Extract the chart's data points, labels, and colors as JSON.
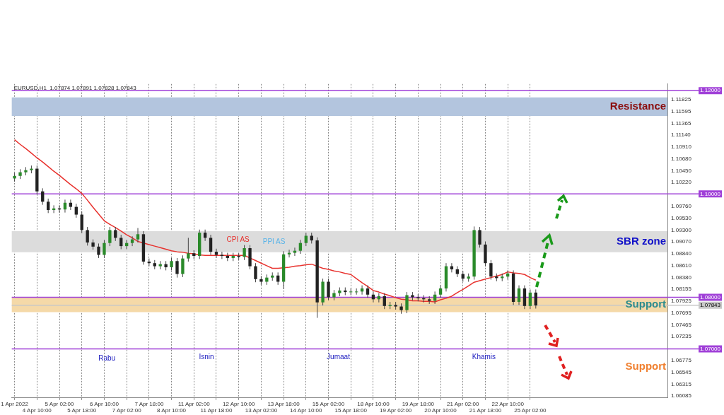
{
  "chart_data": {
    "type": "candlestick",
    "title": "EURUSD,H1  1.07874 1.07891 1.07828 1.07843",
    "categories": [
      "1 Apr 2022",
      null,
      null,
      null,
      "4 Apr 10:00",
      null,
      null,
      null,
      "5 Apr 02:00",
      null,
      null,
      null,
      "5 Apr 18:00",
      null,
      null,
      null,
      "6 Apr 10:00",
      null,
      null,
      null,
      "7 Apr 02:00",
      null,
      null,
      null,
      "7 Apr 18:00",
      null,
      null,
      null,
      "8 Apr 10:00",
      null,
      null,
      null,
      "11 Apr 02:00",
      null,
      null,
      null,
      "11 Apr 18:00",
      null,
      null,
      null,
      "12 Apr 10:00",
      null,
      null,
      null,
      "13 Apr 02:00",
      null,
      null,
      null,
      "13 Apr 18:00",
      null,
      null,
      null,
      "14 Apr 10:00",
      null,
      null,
      null,
      "15 Apr 02:00",
      null,
      null,
      null,
      "15 Apr 18:00",
      null,
      null,
      null,
      "18 Apr 10:00",
      null,
      null,
      null,
      "19 Apr 02:00",
      null,
      null,
      null,
      "19 Apr 18:00",
      null,
      null,
      null,
      "20 Apr 10:00",
      null,
      null,
      null,
      "21 Apr 02:00",
      null,
      null,
      null,
      "21 Apr 18:00",
      null,
      null,
      null,
      "22 Apr 10:00",
      null,
      null,
      null,
      "25 Apr 02:00",
      null,
      null,
      null,
      null,
      null,
      null,
      null,
      null,
      null,
      null,
      null,
      null,
      null,
      null,
      null,
      null,
      null,
      null,
      null,
      null,
      null,
      null,
      null,
      null
    ],
    "ohlc": [
      [
        1.103,
        1.1041,
        1.1024,
        1.1035
      ],
      [
        1.1035,
        1.1048,
        1.1029,
        1.1042
      ],
      [
        1.1042,
        1.1052,
        1.1036,
        1.1046
      ],
      [
        1.1046,
        1.1055,
        1.104,
        1.1049
      ],
      [
        1.1049,
        1.1055,
        1.0999,
        1.1005
      ],
      [
        1.1005,
        1.1011,
        1.0979,
        1.0985
      ],
      [
        1.0985,
        1.0991,
        1.0963,
        1.0969
      ],
      [
        1.0969,
        1.0978,
        1.0963,
        1.0972
      ],
      [
        1.0972,
        1.0978,
        1.0964,
        1.097
      ],
      [
        1.097,
        1.0989,
        1.0964,
        1.0983
      ],
      [
        1.0983,
        1.0989,
        1.0969,
        1.0975
      ],
      [
        1.0975,
        1.0981,
        1.0954,
        1.096
      ],
      [
        1.096,
        1.0966,
        1.0924,
        1.093
      ],
      [
        1.093,
        1.0936,
        1.09,
        1.0906
      ],
      [
        1.0906,
        1.0912,
        1.0892,
        1.0898
      ],
      [
        1.0898,
        1.0904,
        1.0876,
        1.0882
      ],
      [
        1.0882,
        1.0911,
        1.0876,
        1.0905
      ],
      [
        1.0905,
        1.0936,
        1.0899,
        1.093
      ],
      [
        1.093,
        1.0936,
        1.0909,
        1.0915
      ],
      [
        1.0915,
        1.0921,
        1.0893,
        1.0899
      ],
      [
        1.0899,
        1.0911,
        1.0893,
        1.0905
      ],
      [
        1.0905,
        1.0918,
        1.0899,
        1.0912
      ],
      [
        1.0912,
        1.0934,
        1.0906,
        1.0922
      ],
      [
        1.0922,
        1.0928,
        1.0863,
        1.0869
      ],
      [
        1.0869,
        1.0875,
        1.086,
        1.0866
      ],
      [
        1.0866,
        1.0872,
        1.0854,
        1.086
      ],
      [
        1.086,
        1.087,
        1.0854,
        1.0864
      ],
      [
        1.0864,
        1.087,
        1.0852,
        1.0858
      ],
      [
        1.0858,
        1.0876,
        1.0852,
        1.087
      ],
      [
        1.087,
        1.0876,
        1.0838,
        1.0845
      ],
      [
        1.0845,
        1.0881,
        1.0839,
        1.0875
      ],
      [
        1.0875,
        1.0915,
        1.0869,
        1.0885
      ],
      [
        1.0885,
        1.0891,
        1.0874,
        1.088
      ],
      [
        1.088,
        1.0931,
        1.0874,
        1.0925
      ],
      [
        1.0925,
        1.0931,
        1.0909,
        1.0915
      ],
      [
        1.0915,
        1.0921,
        1.0882,
        1.0888
      ],
      [
        1.0888,
        1.0894,
        1.0876,
        1.0882
      ],
      [
        1.0882,
        1.0888,
        1.0874,
        1.088
      ],
      [
        1.088,
        1.0886,
        1.087,
        1.0876
      ],
      [
        1.0876,
        1.0886,
        1.087,
        1.088
      ],
      [
        1.088,
        1.0886,
        1.0872,
        1.0878
      ],
      [
        1.0878,
        1.0901,
        1.0872,
        1.0895
      ],
      [
        1.0895,
        1.0901,
        1.0854,
        1.086
      ],
      [
        1.086,
        1.0866,
        1.0829,
        1.0835
      ],
      [
        1.0835,
        1.0841,
        1.0824,
        1.083
      ],
      [
        1.083,
        1.0844,
        1.0824,
        1.0838
      ],
      [
        1.0838,
        1.0848,
        1.0832,
        1.0842
      ],
      [
        1.0842,
        1.0848,
        1.0824,
        1.083
      ],
      [
        1.083,
        1.0889,
        1.0816,
        1.0883
      ],
      [
        1.0883,
        1.0892,
        1.0877,
        1.0886
      ],
      [
        1.0886,
        1.0896,
        1.088,
        1.089
      ],
      [
        1.089,
        1.0911,
        1.0884,
        1.0905
      ],
      [
        1.0905,
        1.0925,
        1.0899,
        1.0919
      ],
      [
        1.0919,
        1.0925,
        1.0904,
        1.091
      ],
      [
        1.091,
        1.0916,
        1.076,
        1.079
      ],
      [
        1.079,
        1.0836,
        1.0784,
        1.083
      ],
      [
        1.083,
        1.0836,
        1.0794,
        1.08
      ],
      [
        1.08,
        1.0814,
        1.0794,
        1.0808
      ],
      [
        1.0808,
        1.0819,
        1.0802,
        1.0813
      ],
      [
        1.0813,
        1.0819,
        1.0804,
        1.081
      ],
      [
        1.081,
        1.0817,
        1.0804,
        1.0811
      ],
      [
        1.0811,
        1.0817,
        1.0805,
        1.0811
      ],
      [
        1.0811,
        1.0823,
        1.0805,
        1.0817
      ],
      [
        1.0817,
        1.0823,
        1.0799,
        1.0805
      ],
      [
        1.0805,
        1.0811,
        1.079,
        1.0796
      ],
      [
        1.0796,
        1.0808,
        1.079,
        1.0802
      ],
      [
        1.0802,
        1.0808,
        1.0777,
        1.0783
      ],
      [
        1.0783,
        1.0791,
        1.0777,
        1.0785
      ],
      [
        1.0785,
        1.0791,
        1.0776,
        1.0782
      ],
      [
        1.0782,
        1.0788,
        1.0768,
        1.0775
      ],
      [
        1.0775,
        1.081,
        1.0769,
        1.0804
      ],
      [
        1.0804,
        1.081,
        1.0794,
        1.08
      ],
      [
        1.08,
        1.0806,
        1.0792,
        1.0798
      ],
      [
        1.0798,
        1.0804,
        1.079,
        1.0796
      ],
      [
        1.0796,
        1.0802,
        1.0787,
        1.0793
      ],
      [
        1.0793,
        1.0811,
        1.0787,
        1.0805
      ],
      [
        1.0805,
        1.0823,
        1.0799,
        1.0817
      ],
      [
        1.0817,
        1.0866,
        1.0811,
        1.086
      ],
      [
        1.086,
        1.0866,
        1.0848,
        1.0854
      ],
      [
        1.0854,
        1.086,
        1.0839,
        1.0845
      ],
      [
        1.0845,
        1.0851,
        1.083,
        1.0836
      ],
      [
        1.0836,
        1.0846,
        1.083,
        1.084
      ],
      [
        1.084,
        1.0937,
        1.0834,
        1.093
      ],
      [
        1.093,
        1.0936,
        1.0896,
        1.0902
      ],
      [
        1.0902,
        1.0908,
        1.086,
        1.0866
      ],
      [
        1.0866,
        1.0872,
        1.0834,
        1.084
      ],
      [
        1.084,
        1.0846,
        1.0831,
        1.0837
      ],
      [
        1.0837,
        1.0846,
        1.0831,
        1.084
      ],
      [
        1.084,
        1.0852,
        1.0834,
        1.0846
      ],
      [
        1.0846,
        1.0852,
        1.0785,
        1.0791
      ],
      [
        1.0791,
        1.0823,
        1.0785,
        1.0817
      ],
      [
        1.0817,
        1.0823,
        1.0777,
        1.0783
      ],
      [
        1.0783,
        1.0815,
        1.0777,
        1.0809
      ],
      [
        1.0809,
        1.0815,
        1.0778,
        1.0784
      ],
      null,
      null,
      null,
      null,
      null,
      null,
      null,
      null,
      null,
      null,
      null,
      null,
      null,
      null,
      null,
      null,
      null,
      null,
      null,
      null,
      null,
      null,
      null
    ],
    "series": [
      {
        "type": "line",
        "color": "#e8322e",
        "values": [
          1.1105,
          1.1096,
          1.1088,
          1.1079,
          1.107,
          1.1062,
          1.1053,
          1.1044,
          1.1036,
          1.1027,
          1.1018,
          1.101,
          1.1001,
          1.0988,
          1.0974,
          1.0961,
          1.0948,
          1.0941,
          1.0935,
          1.0928,
          1.0921,
          1.0915,
          1.0908,
          1.0905,
          1.0902,
          1.0899,
          1.0896,
          1.0893,
          1.089,
          1.0888,
          1.0887,
          1.0885,
          1.0884,
          1.0882,
          1.0881,
          1.0881,
          1.0881,
          1.0881,
          1.0881,
          1.0881,
          1.0881,
          1.0881,
          1.0876,
          1.0871,
          1.0866,
          1.0861,
          1.0856,
          1.0856,
          1.0857,
          1.0858,
          1.086,
          1.0861,
          1.0863,
          1.0864,
          1.086,
          1.0856,
          1.0854,
          1.0851,
          1.0849,
          1.0846,
          1.0844,
          1.0836,
          1.0828,
          1.0821,
          1.0813,
          1.081,
          1.0806,
          1.0803,
          1.0799,
          1.0796,
          1.0795,
          1.0793,
          1.0793,
          1.0792,
          1.0792,
          1.0791,
          1.0795,
          1.0798,
          1.0802,
          1.0809,
          1.0815,
          1.0822,
          1.0829,
          1.0832,
          1.0835,
          1.0838,
          1.0841,
          1.0844,
          1.0849,
          1.0847,
          1.0846,
          1.0844,
          1.0838,
          1.0833,
          null,
          null,
          null,
          null,
          null,
          null,
          null,
          null,
          null,
          null,
          null,
          null,
          null,
          null,
          null,
          null,
          null,
          null,
          null,
          null,
          null,
          null,
          null
        ]
      }
    ],
    "ylim": [
      1.0605,
      1.1213
    ],
    "yticks": [
      {
        "value": 1.11825,
        "label": "1.11825"
      },
      {
        "value": 1.11595,
        "label": "1.11595"
      },
      {
        "value": 1.11365,
        "label": "1.11365"
      },
      {
        "value": 1.1114,
        "label": "1.11140"
      },
      {
        "value": 1.1091,
        "label": "1.10910"
      },
      {
        "value": 1.1068,
        "label": "1.10680"
      },
      {
        "value": 1.1045,
        "label": "1.10450"
      },
      {
        "value": 1.1022,
        "label": "1.10220"
      },
      {
        "value": 1.0976,
        "label": "1.09760"
      },
      {
        "value": 1.0953,
        "label": "1.09530"
      },
      {
        "value": 1.093,
        "label": "1.09300"
      },
      {
        "value": 1.0907,
        "label": "1.09070"
      },
      {
        "value": 1.0884,
        "label": "1.08840"
      },
      {
        "value": 1.0861,
        "label": "1.08610"
      },
      {
        "value": 1.0838,
        "label": "1.08380"
      },
      {
        "value": 1.08155,
        "label": "1.08155"
      },
      {
        "value": 1.07925,
        "label": "1.07925"
      },
      {
        "value": 1.07695,
        "label": "1.07695"
      },
      {
        "value": 1.07465,
        "label": "1.07465"
      },
      {
        "value": 1.07235,
        "label": "1.07235"
      },
      {
        "value": 1.06775,
        "label": "1.06775"
      },
      {
        "value": 1.06545,
        "label": "1.06545"
      },
      {
        "value": 1.06315,
        "label": "1.06315"
      },
      {
        "value": 1.06085,
        "label": "1.06085"
      }
    ],
    "ref_lines": [
      {
        "axis": "y",
        "value": 1.12,
        "label": "1.12000",
        "color": "#a040d8"
      },
      {
        "axis": "y",
        "value": 1.1,
        "label": "1.10000",
        "color": "#a040d8"
      },
      {
        "axis": "y",
        "value": 1.08,
        "label": "1.08000",
        "color": "#a040d8"
      },
      {
        "axis": "y",
        "value": 1.07843,
        "label": "1.07843",
        "color": "#c8c8c8"
      },
      {
        "axis": "y",
        "value": 1.07,
        "label": "1.07000",
        "color": "#a040d8"
      }
    ],
    "bands": [
      {
        "axis": "y",
        "from": 1.1151,
        "to": 1.1187,
        "label": "Resistance",
        "color": "#b3c5de"
      },
      {
        "axis": "y",
        "from": 1.0887,
        "to": 1.0928,
        "label": "SBR zone",
        "color": "#dcdcdc"
      },
      {
        "axis": "y",
        "from": 1.0771,
        "to": 1.08,
        "label": "Support",
        "color": "#f5d9a8"
      }
    ],
    "annotations": [
      "CPI AS",
      "PPI AS",
      "Rabu",
      "Isnin",
      "Jumaat",
      "Khamis",
      "Support"
    ],
    "grid": "x"
  }
}
